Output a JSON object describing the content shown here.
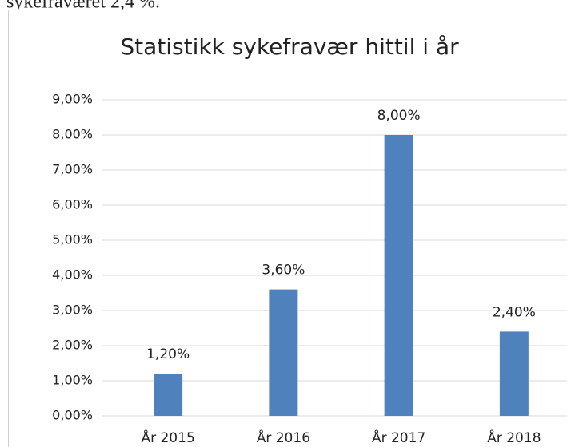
{
  "page_text": "sykefraværet 2,4 %.",
  "chart_data": {
    "type": "bar",
    "title": "Statistikk sykefravær hittil i år",
    "categories": [
      "År 2015",
      "År 2016",
      "År 2017",
      "År 2018"
    ],
    "values": [
      1.2,
      3.6,
      8.0,
      2.4
    ],
    "value_labels": [
      "1,20%",
      "3,60%",
      "8,00%",
      "2,40%"
    ],
    "color": "#4f81bd",
    "ylim": [
      0,
      9
    ],
    "yticks": [
      {
        "value": 0,
        "label": "0,00%"
      },
      {
        "value": 1,
        "label": "1,00%"
      },
      {
        "value": 2,
        "label": "2,00%"
      },
      {
        "value": 3,
        "label": "3,00%"
      },
      {
        "value": 4,
        "label": "4,00%"
      },
      {
        "value": 5,
        "label": "5,00%"
      },
      {
        "value": 6,
        "label": "6,00%"
      },
      {
        "value": 7,
        "label": "7,00%"
      },
      {
        "value": 8,
        "label": "8,00%"
      },
      {
        "value": 9,
        "label": "9,00%"
      }
    ],
    "grid": true
  }
}
